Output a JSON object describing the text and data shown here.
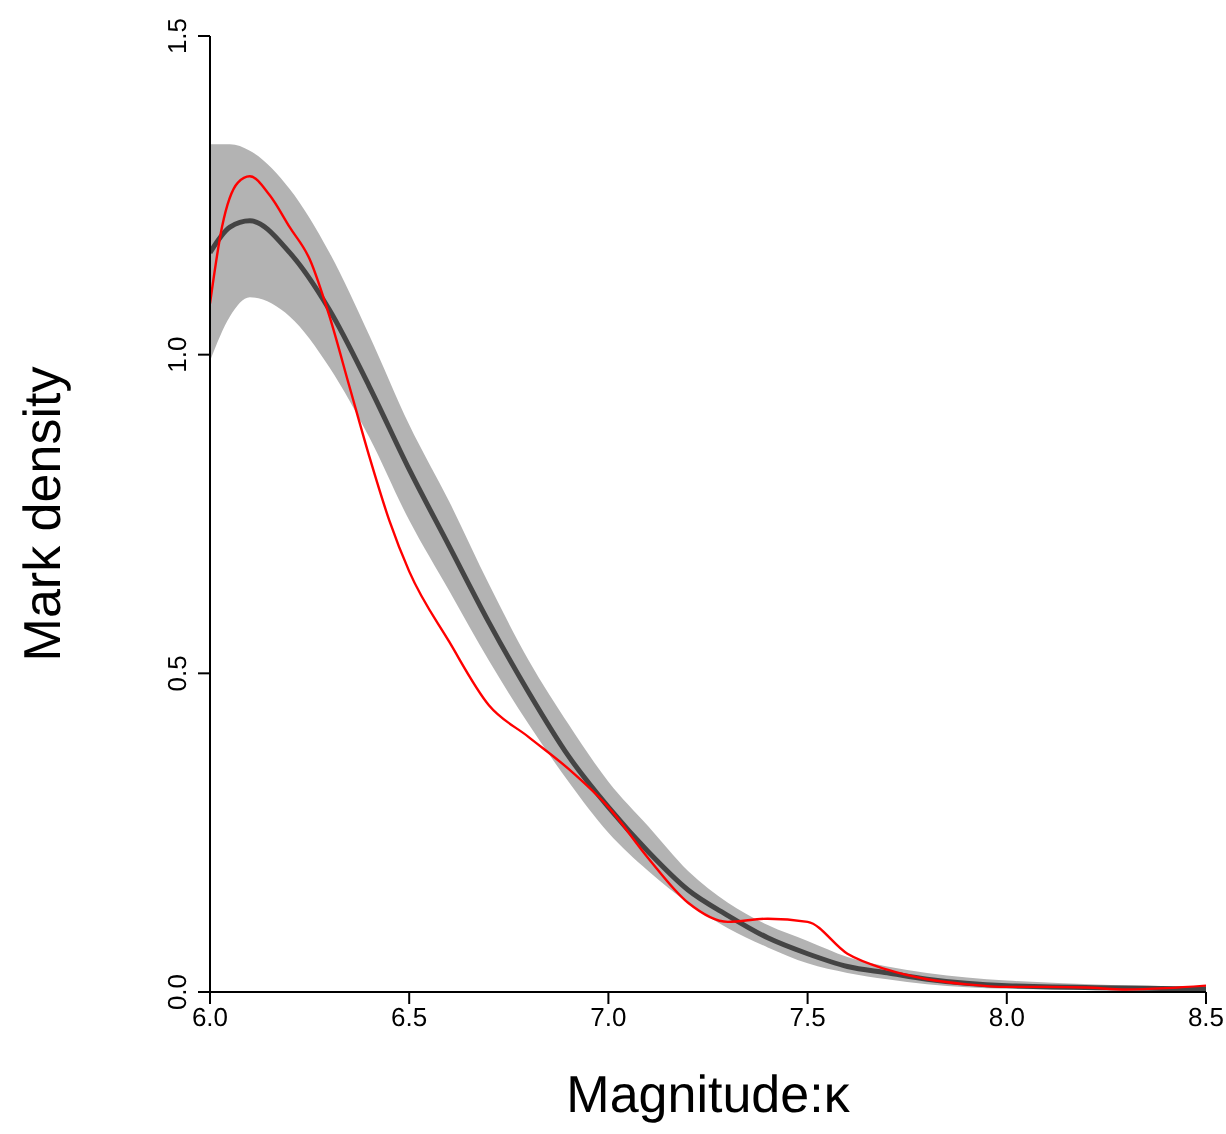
{
  "chart_data": {
    "type": "line",
    "xlabel": "Magnitude:κ",
    "ylabel": "Mark density",
    "xlim": [
      6,
      8.5
    ],
    "ylim": [
      0,
      1.5
    ],
    "xticks": [
      {
        "value": 6,
        "label": "6.0"
      },
      6.5,
      {
        "value": 7,
        "label": "7.0"
      },
      7.5,
      {
        "value": 8,
        "label": "8.0"
      },
      8.5
    ],
    "yticks": [
      {
        "value": 0,
        "label": "0.0"
      },
      0.5,
      {
        "value": 1,
        "label": "1.0"
      },
      1.5
    ],
    "grid": false,
    "legend": false,
    "series": [
      {
        "color": "#444444",
        "x": [
          6.0,
          6.05,
          6.1,
          6.2,
          6.3,
          6.4,
          6.5,
          6.6,
          6.7,
          6.8,
          6.9,
          7.0,
          7.1,
          7.2,
          7.3,
          7.4,
          7.5,
          7.6,
          7.7,
          7.8,
          8.0,
          8.5
        ],
        "values": [
          1.16,
          1.2,
          1.21,
          1.16,
          1.07,
          0.95,
          0.82,
          0.7,
          0.58,
          0.47,
          0.37,
          0.29,
          0.22,
          0.16,
          0.12,
          0.085,
          0.06,
          0.04,
          0.03,
          0.02,
          0.01,
          0.005
        ],
        "lower": [
          0.99,
          1.06,
          1.09,
          1.06,
          0.98,
          0.87,
          0.74,
          0.63,
          0.52,
          0.42,
          0.33,
          0.25,
          0.19,
          0.14,
          0.1,
          0.07,
          0.045,
          0.03,
          0.02,
          0.012,
          0.005,
          0.002
        ],
        "upper": [
          1.33,
          1.33,
          1.32,
          1.26,
          1.16,
          1.03,
          0.89,
          0.77,
          0.64,
          0.52,
          0.42,
          0.33,
          0.26,
          0.19,
          0.14,
          0.105,
          0.08,
          0.055,
          0.04,
          0.03,
          0.018,
          0.008
        ]
      },
      {
        "color": "#ff0000",
        "x": [
          6.0,
          6.03,
          6.07,
          6.1,
          6.15,
          6.2,
          6.25,
          6.3,
          6.35,
          6.4,
          6.45,
          6.5,
          6.6,
          6.7,
          6.8,
          6.9,
          7.0,
          7.1,
          7.2,
          7.3,
          7.4,
          7.5,
          7.6,
          7.7,
          7.8,
          7.9,
          8.0,
          8.1,
          8.2,
          8.3,
          8.4,
          8.5
        ],
        "values": [
          1.08,
          1.2,
          1.27,
          1.28,
          1.25,
          1.2,
          1.15,
          1.06,
          0.95,
          0.84,
          0.74,
          0.66,
          0.55,
          0.45,
          0.4,
          0.35,
          0.29,
          0.21,
          0.14,
          0.11,
          0.115,
          0.11,
          0.06,
          0.035,
          0.02,
          0.012,
          0.008,
          0.008,
          0.007,
          0.004,
          0.006,
          0.01
        ]
      }
    ]
  }
}
